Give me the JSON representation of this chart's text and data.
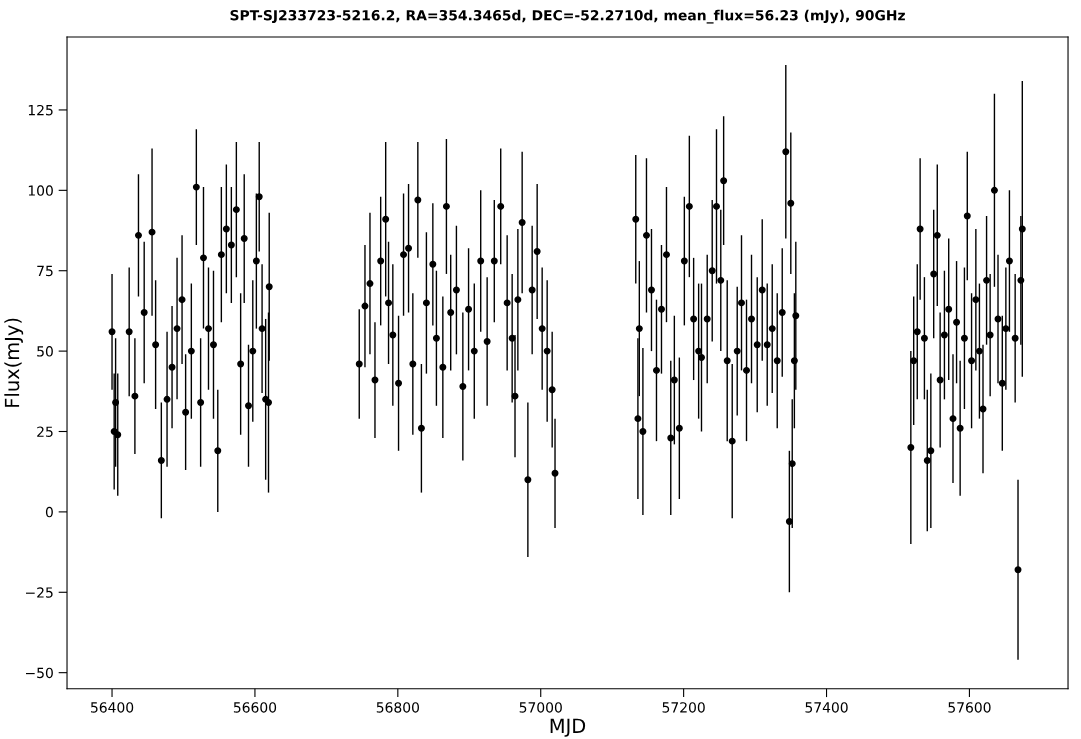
{
  "chart_data": {
    "type": "scatter",
    "title": "SPT-SJ233723-5216.2, RA=354.3465d, DEC=-52.2710d, mean_flux=56.23 (mJy), 90GHz",
    "xlabel": "MJD",
    "ylabel": "Flux(mJy)",
    "xlim": [
      56337,
      57738
    ],
    "ylim": [
      -55,
      147.7
    ],
    "xticks": [
      56400,
      56600,
      56800,
      57000,
      57200,
      57400,
      57600
    ],
    "yticks": [
      {
        "value": -50,
        "label": "−50"
      },
      {
        "value": -25,
        "label": "−25"
      },
      0,
      25,
      50,
      75,
      100,
      125
    ],
    "grid": false,
    "marker": "circle",
    "series": [
      {
        "color": "#000000",
        "x": [
          56400,
          56403,
          56405,
          56408,
          56424,
          56432,
          56437,
          56445,
          56456,
          56461,
          56469,
          56477,
          56484,
          56491,
          56498,
          56503,
          56511,
          56518,
          56524,
          56528,
          56535,
          56542,
          56548,
          56553,
          56560,
          56567,
          56574,
          56580,
          56585,
          56591,
          56597,
          56602,
          56606,
          56610,
          56615,
          56619,
          56620,
          56746,
          56754,
          56761,
          56768,
          56776,
          56783,
          56787,
          56793,
          56801,
          56808,
          56815,
          56821,
          56828,
          56833,
          56840,
          56849,
          56854,
          56863,
          56868,
          56874,
          56882,
          56891,
          56899,
          56907,
          56916,
          56925,
          56935,
          56944,
          56953,
          56960,
          56964,
          56968,
          56974,
          56982,
          56988,
          56995,
          57002,
          57009,
          57016,
          57020,
          57133,
          57136,
          57138,
          57143,
          57148,
          57155,
          57162,
          57169,
          57176,
          57182,
          57187,
          57194,
          57201,
          57208,
          57214,
          57221,
          57225,
          57233,
          57240,
          57246,
          57252,
          57256,
          57261,
          57268,
          57275,
          57281,
          57288,
          57295,
          57303,
          57310,
          57317,
          57324,
          57331,
          57338,
          57343,
          57348,
          57350,
          57352,
          57355,
          57357,
          57518,
          57522,
          57527,
          57531,
          57537,
          57541,
          57546,
          57550,
          57555,
          57559,
          57565,
          57571,
          57577,
          57582,
          57587,
          57593,
          57597,
          57603,
          57609,
          57614,
          57619,
          57624,
          57629,
          57635,
          57640,
          57646,
          57651,
          57656,
          57664,
          57668,
          57672,
          57674
        ],
        "values": [
          56,
          25,
          34,
          24,
          56,
          36,
          86,
          62,
          87,
          52,
          16,
          35,
          45,
          57,
          66,
          31,
          50,
          101,
          34,
          79,
          57,
          52,
          19,
          80,
          88,
          83,
          94,
          46,
          85,
          33,
          50,
          78,
          98,
          57,
          35,
          34,
          70,
          46,
          64,
          71,
          41,
          78,
          91,
          65,
          55,
          40,
          80,
          82,
          46,
          97,
          26,
          65,
          77,
          54,
          45,
          95,
          62,
          69,
          39,
          63,
          50,
          78,
          53,
          78,
          95,
          65,
          54,
          36,
          66,
          90,
          10,
          69,
          81,
          57,
          50,
          38,
          12,
          91,
          29,
          57,
          25,
          86,
          69,
          44,
          63,
          80,
          23,
          41,
          26,
          78,
          95,
          60,
          50,
          48,
          60,
          75,
          95,
          72,
          103,
          47,
          22,
          50,
          65,
          44,
          60,
          52,
          69,
          52,
          57,
          47,
          62,
          112,
          -3,
          96,
          15,
          47,
          61,
          20,
          47,
          56,
          88,
          54,
          16,
          19,
          74,
          86,
          41,
          55,
          63,
          29,
          59,
          26,
          54,
          92,
          47,
          66,
          50,
          32,
          72,
          55,
          100,
          60,
          40,
          57,
          78,
          54,
          -18,
          72,
          88
        ],
        "errors": [
          18,
          18,
          20,
          19,
          20,
          18,
          19,
          22,
          26,
          20,
          18,
          21,
          19,
          22,
          20,
          18,
          21,
          18,
          20,
          22,
          19,
          23,
          19,
          21,
          20,
          18,
          21,
          22,
          20,
          19,
          22,
          21,
          17,
          20,
          25,
          28,
          23,
          17,
          19,
          22,
          18,
          20,
          24,
          19,
          22,
          21,
          19,
          20,
          22,
          18,
          20,
          22,
          19,
          21,
          22,
          21,
          18,
          20,
          23,
          19,
          21,
          22,
          20,
          19,
          18,
          21,
          20,
          19,
          22,
          22,
          24,
          20,
          21,
          19,
          22,
          18,
          17,
          20,
          25,
          21,
          26,
          24,
          19,
          22,
          20,
          21,
          24,
          20,
          22,
          20,
          22,
          19,
          21,
          23,
          20,
          22,
          24,
          22,
          20,
          25,
          24,
          20,
          21,
          22,
          20,
          21,
          22,
          19,
          20,
          21,
          20,
          27,
          22,
          22,
          20,
          21,
          23,
          30,
          20,
          21,
          22,
          19,
          22,
          24,
          20,
          22,
          21,
          20,
          22,
          20,
          19,
          21,
          22,
          20,
          21,
          22,
          21,
          20,
          20,
          19,
          30,
          20,
          21,
          19,
          22,
          20,
          28,
          20,
          46
        ]
      }
    ]
  }
}
